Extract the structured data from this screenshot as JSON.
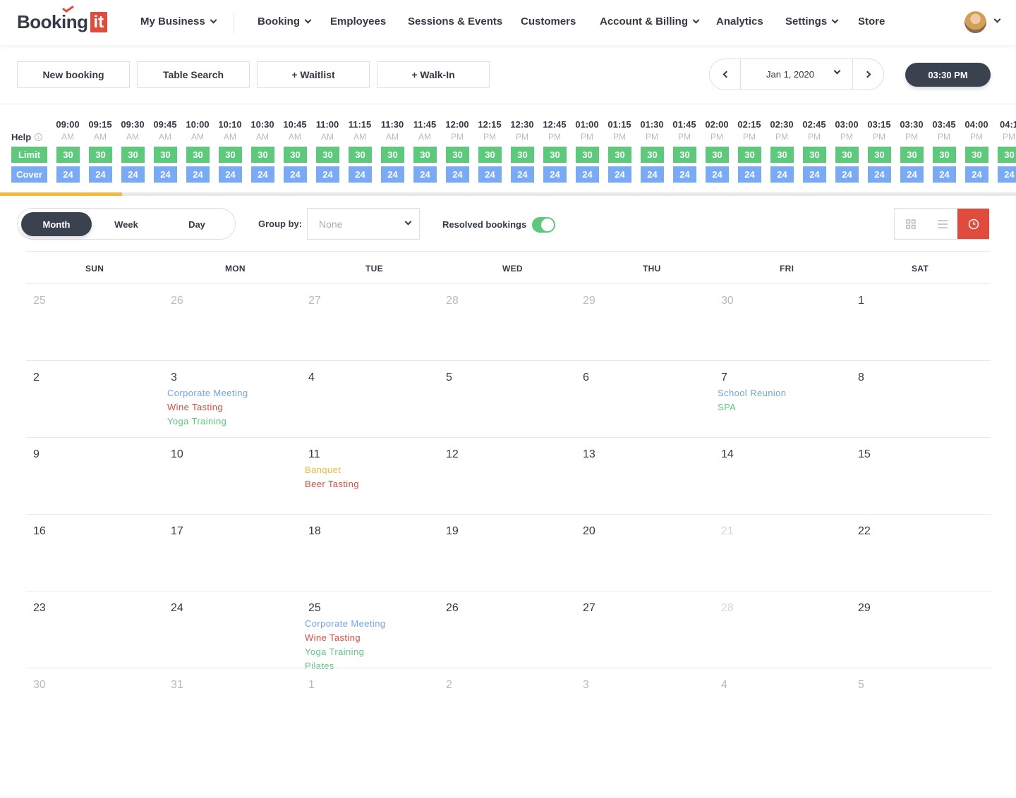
{
  "brand": {
    "name": "Booking",
    "box": "it"
  },
  "nav": {
    "items": [
      {
        "label": "My Business",
        "dropdown": true
      },
      {
        "label": "Booking",
        "dropdown": true
      },
      {
        "label": "Employees",
        "dropdown": false
      },
      {
        "label": "Sessions & Events",
        "dropdown": false
      },
      {
        "label": "Customers",
        "dropdown": false
      },
      {
        "label": "Account & Billing",
        "dropdown": true
      },
      {
        "label": "Analytics",
        "dropdown": false
      },
      {
        "label": "Settings",
        "dropdown": true
      },
      {
        "label": "Store",
        "dropdown": false
      }
    ]
  },
  "actions": [
    "New booking",
    "Table Search",
    "+ Waitlist",
    "+ Walk-In"
  ],
  "date_nav": {
    "date": "Jan 1, 2020"
  },
  "current_time": "03:30 PM",
  "timeline": {
    "help_label": "Help",
    "limit_label": "Limit",
    "cover_label": "Cover",
    "progress_fraction": 0.12,
    "slots": [
      {
        "time": "09:00",
        "ampm": "AM",
        "limit": "30",
        "cover": "24"
      },
      {
        "time": "09:15",
        "ampm": "AM",
        "limit": "30",
        "cover": "24"
      },
      {
        "time": "09:30",
        "ampm": "AM",
        "limit": "30",
        "cover": "24"
      },
      {
        "time": "09:45",
        "ampm": "AM",
        "limit": "30",
        "cover": "24"
      },
      {
        "time": "10:00",
        "ampm": "AM",
        "limit": "30",
        "cover": "24"
      },
      {
        "time": "10:10",
        "ampm": "AM",
        "limit": "30",
        "cover": "24"
      },
      {
        "time": "10:30",
        "ampm": "AM",
        "limit": "30",
        "cover": "24"
      },
      {
        "time": "10:45",
        "ampm": "AM",
        "limit": "30",
        "cover": "24"
      },
      {
        "time": "11:00",
        "ampm": "AM",
        "limit": "30",
        "cover": "24"
      },
      {
        "time": "11:15",
        "ampm": "AM",
        "limit": "30",
        "cover": "24"
      },
      {
        "time": "11:30",
        "ampm": "AM",
        "limit": "30",
        "cover": "24"
      },
      {
        "time": "11:45",
        "ampm": "AM",
        "limit": "30",
        "cover": "24"
      },
      {
        "time": "12:00",
        "ampm": "PM",
        "limit": "30",
        "cover": "24"
      },
      {
        "time": "12:15",
        "ampm": "PM",
        "limit": "30",
        "cover": "24"
      },
      {
        "time": "12:30",
        "ampm": "PM",
        "limit": "30",
        "cover": "24"
      },
      {
        "time": "12:45",
        "ampm": "PM",
        "limit": "30",
        "cover": "24"
      },
      {
        "time": "01:00",
        "ampm": "PM",
        "limit": "30",
        "cover": "24"
      },
      {
        "time": "01:15",
        "ampm": "PM",
        "limit": "30",
        "cover": "24"
      },
      {
        "time": "01:30",
        "ampm": "PM",
        "limit": "30",
        "cover": "24"
      },
      {
        "time": "01:45",
        "ampm": "PM",
        "limit": "30",
        "cover": "24"
      },
      {
        "time": "02:00",
        "ampm": "PM",
        "limit": "30",
        "cover": "24"
      },
      {
        "time": "02:15",
        "ampm": "PM",
        "limit": "30",
        "cover": "24"
      },
      {
        "time": "02:30",
        "ampm": "PM",
        "limit": "30",
        "cover": "24"
      },
      {
        "time": "02:45",
        "ampm": "PM",
        "limit": "30",
        "cover": "24"
      },
      {
        "time": "03:00",
        "ampm": "PM",
        "limit": "30",
        "cover": "24"
      },
      {
        "time": "03:15",
        "ampm": "PM",
        "limit": "30",
        "cover": "24"
      },
      {
        "time": "03:30",
        "ampm": "PM",
        "limit": "30",
        "cover": "24"
      },
      {
        "time": "03:45",
        "ampm": "PM",
        "limit": "30",
        "cover": "24"
      },
      {
        "time": "04:00",
        "ampm": "PM",
        "limit": "30",
        "cover": "24"
      },
      {
        "time": "04:1",
        "ampm": "PM",
        "limit": "30",
        "cover": "24"
      }
    ]
  },
  "toolbar": {
    "views": [
      {
        "label": "Month",
        "active": true
      },
      {
        "label": "Week",
        "active": false
      },
      {
        "label": "Day",
        "active": false
      }
    ],
    "group_by_label": "Group by:",
    "group_by_value": "None",
    "resolved_label": "Resolved bookings",
    "resolved_on": true
  },
  "colors": {
    "accent": "#e04b3c",
    "dark": "#3a4250",
    "green": "#5cc97b",
    "blue": "#78aaf5",
    "orange": "#f5b93c",
    "event_blue": "#6ea4ee",
    "event_red": "#e04b3c",
    "event_green": "#5cc97b",
    "event_orange": "#f5b93c"
  },
  "calendar": {
    "weekdays": [
      "SUN",
      "MON",
      "TUE",
      "WED",
      "THU",
      "FRI",
      "SAT"
    ],
    "weeks": [
      [
        {
          "day": "25",
          "state": "muted",
          "events": []
        },
        {
          "day": "26",
          "state": "muted",
          "events": []
        },
        {
          "day": "27",
          "state": "muted",
          "events": []
        },
        {
          "day": "28",
          "state": "muted",
          "events": []
        },
        {
          "day": "29",
          "state": "muted",
          "events": []
        },
        {
          "day": "30",
          "state": "muted",
          "events": []
        },
        {
          "day": "1",
          "state": "normal",
          "events": []
        }
      ],
      [
        {
          "day": "2",
          "state": "normal",
          "events": []
        },
        {
          "day": "3",
          "state": "normal",
          "events": [
            {
              "label": "Corporate Meeting",
              "color": "blue"
            },
            {
              "label": "Wine Tasting",
              "color": "red"
            },
            {
              "label": "Yoga Training",
              "color": "green"
            }
          ]
        },
        {
          "day": "4",
          "state": "normal",
          "events": []
        },
        {
          "day": "5",
          "state": "normal",
          "events": []
        },
        {
          "day": "6",
          "state": "normal",
          "events": []
        },
        {
          "day": "7",
          "state": "normal",
          "events": [
            {
              "label": "School Reunion",
              "color": "blue"
            },
            {
              "label": "SPA",
              "color": "green"
            }
          ]
        },
        {
          "day": "8",
          "state": "normal",
          "events": []
        }
      ],
      [
        {
          "day": "9",
          "state": "normal",
          "events": []
        },
        {
          "day": "10",
          "state": "normal",
          "events": []
        },
        {
          "day": "11",
          "state": "normal",
          "events": [
            {
              "label": "Banquet",
              "color": "orange"
            },
            {
              "label": "Beer Tasting",
              "color": "red"
            }
          ]
        },
        {
          "day": "12",
          "state": "normal",
          "events": []
        },
        {
          "day": "13",
          "state": "normal",
          "events": []
        },
        {
          "day": "14",
          "state": "normal",
          "events": []
        },
        {
          "day": "15",
          "state": "normal",
          "events": []
        }
      ],
      [
        {
          "day": "16",
          "state": "normal",
          "events": []
        },
        {
          "day": "17",
          "state": "normal",
          "events": []
        },
        {
          "day": "18",
          "state": "normal",
          "events": []
        },
        {
          "day": "19",
          "state": "normal",
          "events": []
        },
        {
          "day": "20",
          "state": "normal",
          "events": []
        },
        {
          "day": "21",
          "state": "faint",
          "events": []
        },
        {
          "day": "22",
          "state": "normal",
          "events": []
        }
      ],
      [
        {
          "day": "23",
          "state": "normal",
          "events": []
        },
        {
          "day": "24",
          "state": "normal",
          "events": []
        },
        {
          "day": "25",
          "state": "normal",
          "events": [
            {
              "label": "Corporate Meeting",
              "color": "blue"
            },
            {
              "label": "Wine Tasting",
              "color": "red"
            },
            {
              "label": "Yoga Training",
              "color": "green"
            },
            {
              "label": "Pilates",
              "color": "green"
            }
          ]
        },
        {
          "day": "26",
          "state": "normal",
          "events": []
        },
        {
          "day": "27",
          "state": "normal",
          "events": []
        },
        {
          "day": "28",
          "state": "faint",
          "events": []
        },
        {
          "day": "29",
          "state": "normal",
          "events": []
        }
      ],
      [
        {
          "day": "30",
          "state": "muted",
          "events": []
        },
        {
          "day": "31",
          "state": "muted",
          "events": []
        },
        {
          "day": "1",
          "state": "muted",
          "events": []
        },
        {
          "day": "2",
          "state": "muted",
          "events": []
        },
        {
          "day": "3",
          "state": "muted",
          "events": []
        },
        {
          "day": "4",
          "state": "muted",
          "events": []
        },
        {
          "day": "5",
          "state": "muted",
          "events": []
        }
      ]
    ]
  }
}
